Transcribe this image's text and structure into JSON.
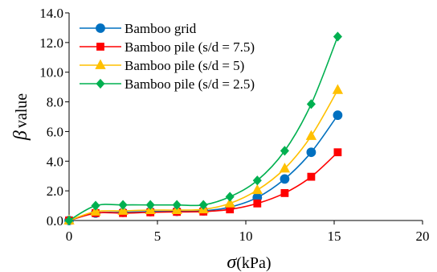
{
  "chart_data": {
    "type": "line",
    "xlabel_symbol": "σ",
    "xlabel_unit": "(kPa)",
    "ylabel_symbol": "β",
    "ylabel_unit": "value",
    "xlim": [
      0,
      20
    ],
    "ylim": [
      0,
      14
    ],
    "xticks": [
      0,
      5,
      10,
      15,
      20
    ],
    "yticks": [
      0,
      2,
      4,
      6,
      8,
      10,
      12,
      14
    ],
    "ytick_labels": [
      "0.0",
      "2.0",
      "4.0",
      "6.0",
      "8.0",
      "10.0",
      "12.0",
      "14.0"
    ],
    "grid": false,
    "legend_position": "top-left",
    "x": [
      0,
      1.5,
      3.05,
      4.6,
      6.1,
      7.6,
      9.1,
      10.65,
      12.2,
      13.7,
      15.2
    ],
    "series": [
      {
        "name": "Bamboo grid",
        "color": "#0070C0",
        "marker": "circle",
        "values": [
          0.0,
          0.5,
          0.55,
          0.6,
          0.62,
          0.65,
          0.9,
          1.55,
          2.8,
          4.6,
          7.1
        ]
      },
      {
        "name": "Bamboo pile (s/d = 7.5)",
        "color": "#FF0000",
        "marker": "square",
        "values": [
          0.0,
          0.5,
          0.5,
          0.55,
          0.58,
          0.6,
          0.75,
          1.15,
          1.85,
          2.95,
          4.6
        ]
      },
      {
        "name": "Bamboo pile (s/d = 5)",
        "color": "#FFC000",
        "marker": "triangle",
        "values": [
          0.0,
          0.6,
          0.65,
          0.7,
          0.7,
          0.75,
          1.15,
          2.05,
          3.5,
          5.7,
          8.8
        ]
      },
      {
        "name": "Bamboo pile (s/d = 2.5)",
        "color": "#00B050",
        "marker": "diamond",
        "values": [
          0.0,
          1.0,
          1.05,
          1.05,
          1.05,
          1.05,
          1.6,
          2.7,
          4.7,
          7.85,
          12.4
        ]
      }
    ]
  }
}
